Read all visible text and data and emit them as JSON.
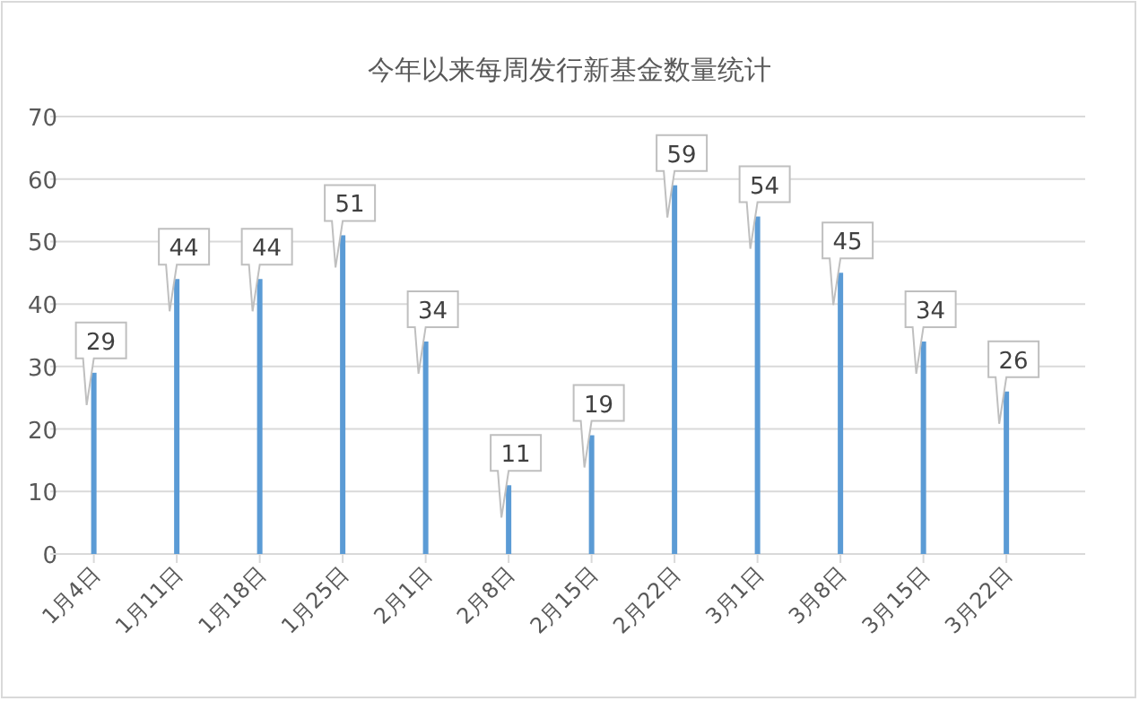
{
  "chart_data": {
    "type": "bar",
    "title": "今年以来每周发行新基金数量统计",
    "categories": [
      "1月4日",
      "1月11日",
      "1月18日",
      "1月25日",
      "2月1日",
      "2月8日",
      "2月15日",
      "2月22日",
      "3月1日",
      "3月8日",
      "3月15日",
      "3月22日"
    ],
    "values": [
      29,
      44,
      44,
      51,
      34,
      11,
      19,
      59,
      54,
      45,
      34,
      26
    ],
    "color": "#5b9bd5",
    "ylim": [
      0,
      70
    ],
    "yticks": [
      0,
      10,
      20,
      30,
      40,
      50,
      60,
      70
    ],
    "grid": "y",
    "data_labels": true
  }
}
